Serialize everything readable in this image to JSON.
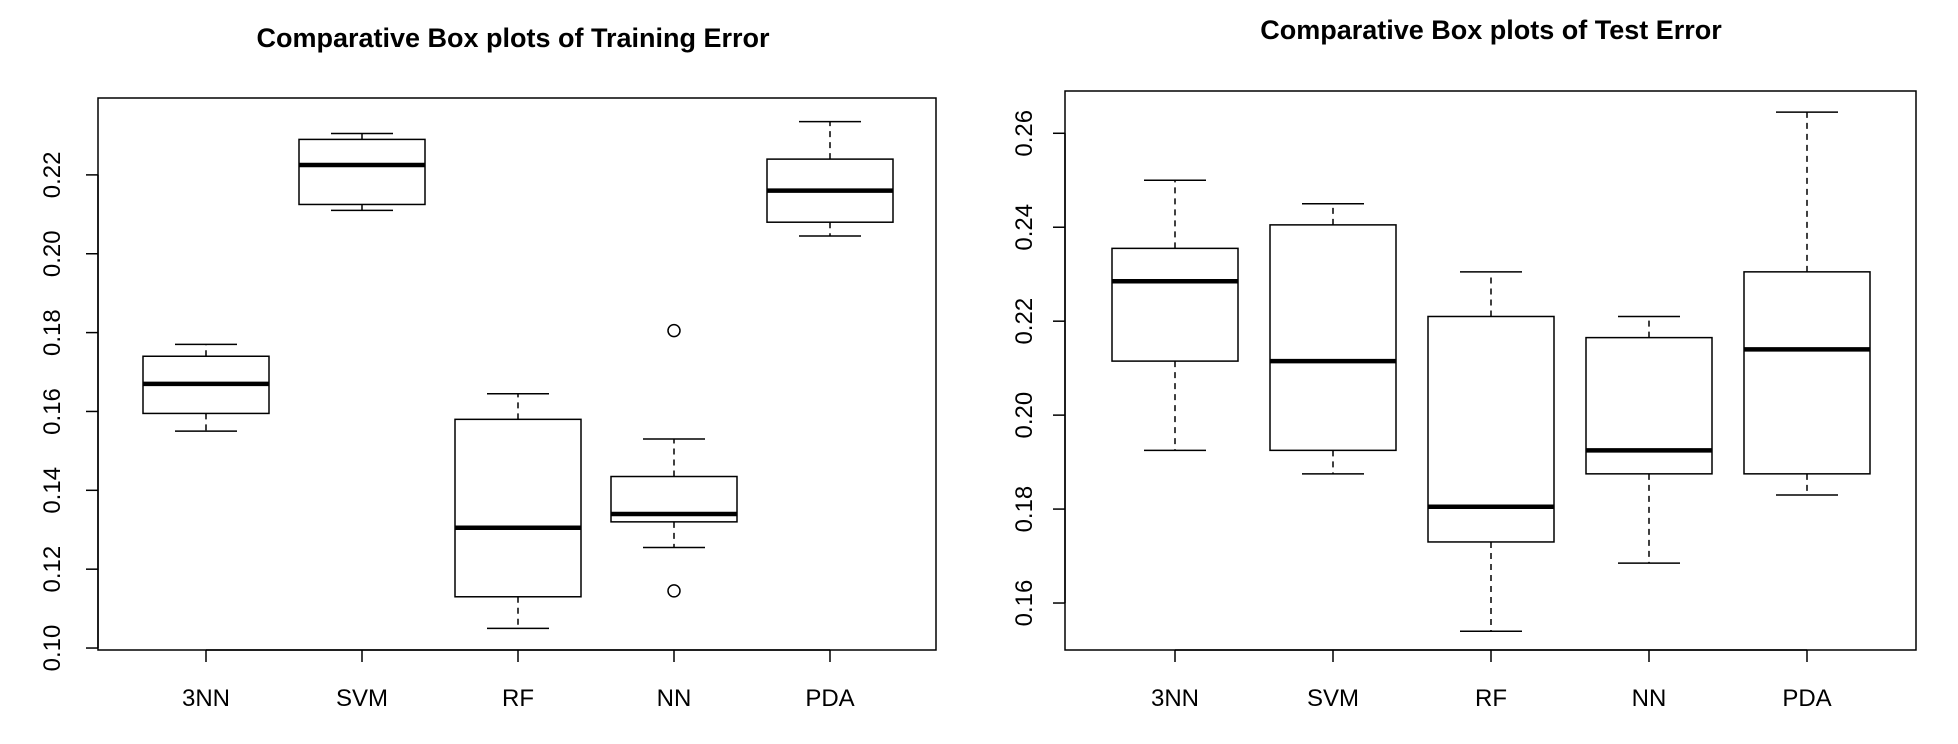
{
  "chart_data": [
    {
      "type": "boxplot",
      "title": "Comparative Box plots of Training Error",
      "xlabel": "",
      "ylabel": "",
      "categories": [
        "3NN",
        "SVM",
        "RF",
        "NN",
        "PDA"
      ],
      "yticks": [
        "0.10",
        "0.12",
        "0.14",
        "0.16",
        "0.18",
        "0.20",
        "0.22"
      ],
      "ylim": [
        0.0995,
        0.2395
      ],
      "boxes": [
        {
          "category": "3NN",
          "min": 0.155,
          "q1": 0.1595,
          "median": 0.167,
          "q3": 0.174,
          "max": 0.177,
          "outliers": []
        },
        {
          "category": "SVM",
          "min": 0.211,
          "q1": 0.2125,
          "median": 0.2225,
          "q3": 0.229,
          "max": 0.2305,
          "outliers": []
        },
        {
          "category": "RF",
          "min": 0.105,
          "q1": 0.113,
          "median": 0.1305,
          "q3": 0.158,
          "max": 0.1645,
          "outliers": []
        },
        {
          "category": "NN",
          "min": 0.1255,
          "q1": 0.132,
          "median": 0.134,
          "q3": 0.1435,
          "max": 0.153,
          "outliers": [
            0.1145,
            0.1805
          ]
        },
        {
          "category": "PDA",
          "min": 0.2045,
          "q1": 0.208,
          "median": 0.216,
          "q3": 0.224,
          "max": 0.2335,
          "outliers": []
        }
      ]
    },
    {
      "type": "boxplot",
      "title": "Comparative Box plots of Test Error",
      "xlabel": "",
      "ylabel": "",
      "categories": [
        "3NN",
        "SVM",
        "RF",
        "NN",
        "PDA"
      ],
      "yticks": [
        "0.16",
        "0.18",
        "0.20",
        "0.22",
        "0.24",
        "0.26"
      ],
      "ylim": [
        0.15,
        0.269
      ],
      "boxes": [
        {
          "category": "3NN",
          "min": 0.1925,
          "q1": 0.2115,
          "median": 0.2285,
          "q3": 0.2355,
          "max": 0.25,
          "outliers": []
        },
        {
          "category": "SVM",
          "min": 0.1875,
          "q1": 0.1925,
          "median": 0.2115,
          "q3": 0.2405,
          "max": 0.245,
          "outliers": []
        },
        {
          "category": "RF",
          "min": 0.154,
          "q1": 0.173,
          "median": 0.1805,
          "q3": 0.221,
          "max": 0.2305,
          "outliers": []
        },
        {
          "category": "NN",
          "min": 0.1685,
          "q1": 0.1875,
          "median": 0.1925,
          "q3": 0.2165,
          "max": 0.221,
          "outliers": []
        },
        {
          "category": "PDA",
          "min": 0.183,
          "q1": 0.1875,
          "median": 0.214,
          "q3": 0.2305,
          "max": 0.2645,
          "outliers": []
        }
      ]
    }
  ]
}
